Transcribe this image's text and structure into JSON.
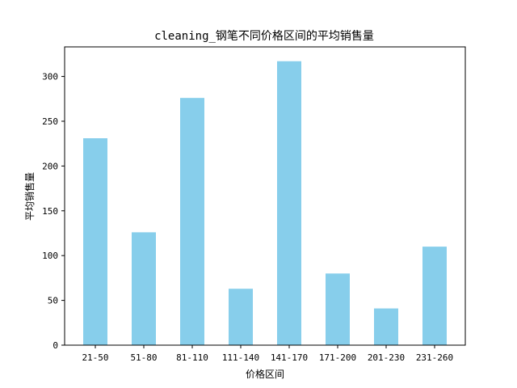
{
  "chart_data": {
    "type": "bar",
    "title": "cleaning_钢笔不同价格区间的平均销售量",
    "xlabel": "价格区间",
    "ylabel": "平均销售量",
    "categories": [
      "21-50",
      "51-80",
      "81-110",
      "111-140",
      "141-170",
      "171-200",
      "201-230",
      "231-260"
    ],
    "values": [
      231,
      126,
      276,
      63,
      317,
      80,
      41,
      110
    ],
    "ylim": [
      0,
      333
    ],
    "yticks": [
      0,
      50,
      100,
      150,
      200,
      250,
      300
    ],
    "bar_color": "#87ceeb",
    "grid": false,
    "legend": "none"
  }
}
